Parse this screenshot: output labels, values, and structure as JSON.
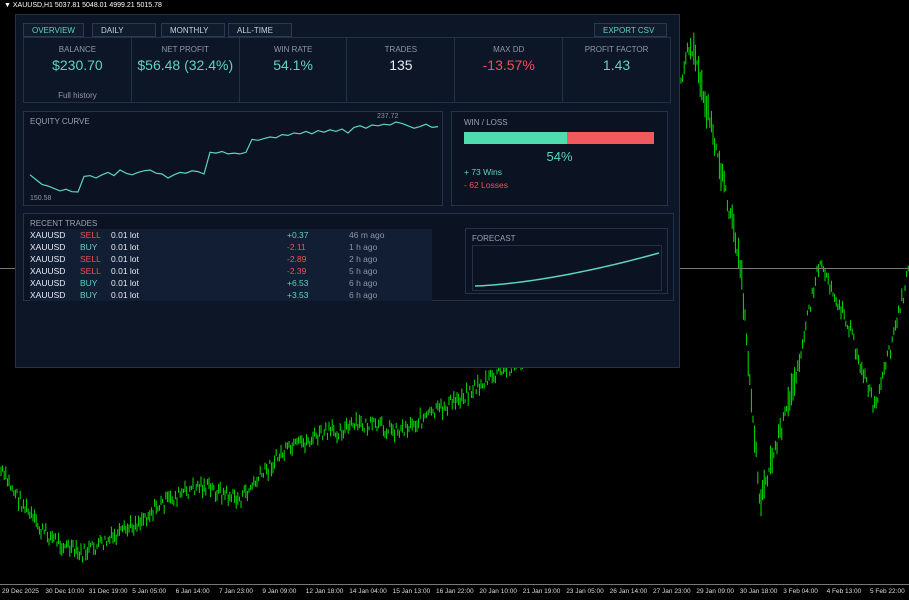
{
  "window": {
    "title": "XAUUSD,H1  5037.81 5048.01 4999.21 5015.78"
  },
  "xaxis": [
    "29 Dec 2025",
    "30 Dec 10:00",
    "31 Dec 19:00",
    "5 Jan 05:00",
    "6 Jan 14:00",
    "7 Jan 23:00",
    "9 Jan 09:00",
    "12 Jan 18:00",
    "14 Jan 04:00",
    "15 Jan 13:00",
    "16 Jan 22:00",
    "20 Jan 10:00",
    "21 Jan 19:00",
    "23 Jan 05:00",
    "26 Jan 14:00",
    "27 Jan 23:00",
    "29 Jan 09:00",
    "30 Jan 18:00",
    "3 Feb 04:00",
    "4 Feb 13:00",
    "5 Feb 22:00"
  ],
  "colors": {
    "accent": "#5ed3c0",
    "loss": "#f0505a",
    "candles": "#00e000",
    "panel": "#0d1626"
  },
  "tabs": [
    {
      "label": "OVERVIEW",
      "active": true
    },
    {
      "label": "DAILY"
    },
    {
      "label": "MONTHLY"
    },
    {
      "label": "ALL-TIME"
    }
  ],
  "export_label": "EXPORT CSV",
  "stats": [
    {
      "label": "BALANCE",
      "value": "$230.70",
      "sub": "Full history",
      "color": "teal"
    },
    {
      "label": "NET PROFIT",
      "value": "$56.48 (32.4%)",
      "color": "teal"
    },
    {
      "label": "WIN RATE",
      "value": "54.1%",
      "color": "teal"
    },
    {
      "label": "TRADES",
      "value": "135",
      "color": "white"
    },
    {
      "label": "MAX DD",
      "value": "-13.57%",
      "color": "red"
    },
    {
      "label": "PROFIT FACTOR",
      "value": "1.43",
      "color": "teal"
    }
  ],
  "equity": {
    "title": "EQUITY CURVE",
    "min_label": "150.58",
    "max_label": "237.72",
    "values": [
      172,
      166,
      160,
      158,
      155,
      152,
      154,
      151,
      150.58,
      170,
      171,
      168,
      172,
      175,
      171,
      178,
      174,
      172,
      175,
      177,
      178,
      174,
      173,
      168,
      172,
      175,
      174,
      177,
      176,
      173,
      200,
      199,
      201,
      198,
      199,
      198,
      200,
      216,
      215,
      217,
      219,
      218,
      222,
      221,
      224,
      223,
      226,
      223,
      227,
      225,
      228,
      226,
      229,
      224,
      231,
      233,
      230,
      234,
      233,
      235,
      234,
      237.72,
      236,
      233,
      230,
      232,
      235,
      231,
      232
    ]
  },
  "winloss": {
    "title": "WIN / LOSS",
    "win_fraction": 0.54,
    "percent": "54%",
    "wins": "+ 73 Wins",
    "losses": "- 62 Losses"
  },
  "recent": {
    "title": "RECENT TRADES",
    "rows": [
      {
        "symbol": "XAUUSD",
        "side": "SELL",
        "lot": "0.01 lot",
        "pnl": "+0.37",
        "time": "46 m ago"
      },
      {
        "symbol": "XAUUSD",
        "side": "BUY",
        "lot": "0.01 lot",
        "pnl": "-2.11",
        "time": "1 h ago"
      },
      {
        "symbol": "XAUUSD",
        "side": "SELL",
        "lot": "0.01 lot",
        "pnl": "-2.89",
        "time": "2 h ago"
      },
      {
        "symbol": "XAUUSD",
        "side": "SELL",
        "lot": "0.01 lot",
        "pnl": "-2.39",
        "time": "5 h ago"
      },
      {
        "symbol": "XAUUSD",
        "side": "BUY",
        "lot": "0.01 lot",
        "pnl": "+6.53",
        "time": "6 h ago"
      },
      {
        "symbol": "XAUUSD",
        "side": "BUY",
        "lot": "0.01 lot",
        "pnl": "+3.53",
        "time": "6 h ago"
      }
    ]
  },
  "forecast": {
    "title": "FORECAST"
  }
}
